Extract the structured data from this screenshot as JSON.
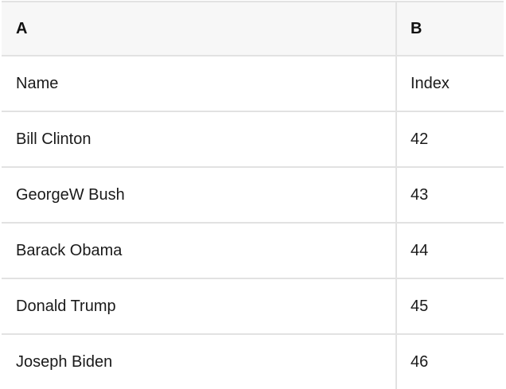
{
  "table": {
    "column_headers": [
      "A",
      "B"
    ],
    "rows": [
      [
        "Name",
        "Index"
      ],
      [
        "Bill Clinton",
        "42"
      ],
      [
        "GeorgeW Bush",
        "43"
      ],
      [
        "Barack Obama",
        "44"
      ],
      [
        "Donald Trump",
        "45"
      ],
      [
        "Joseph Biden",
        "46"
      ]
    ]
  },
  "colors": {
    "header_background": "#f7f7f7",
    "row_background": "#ffffff",
    "border": "#e2e2e2",
    "text": "#1a1a1a"
  }
}
